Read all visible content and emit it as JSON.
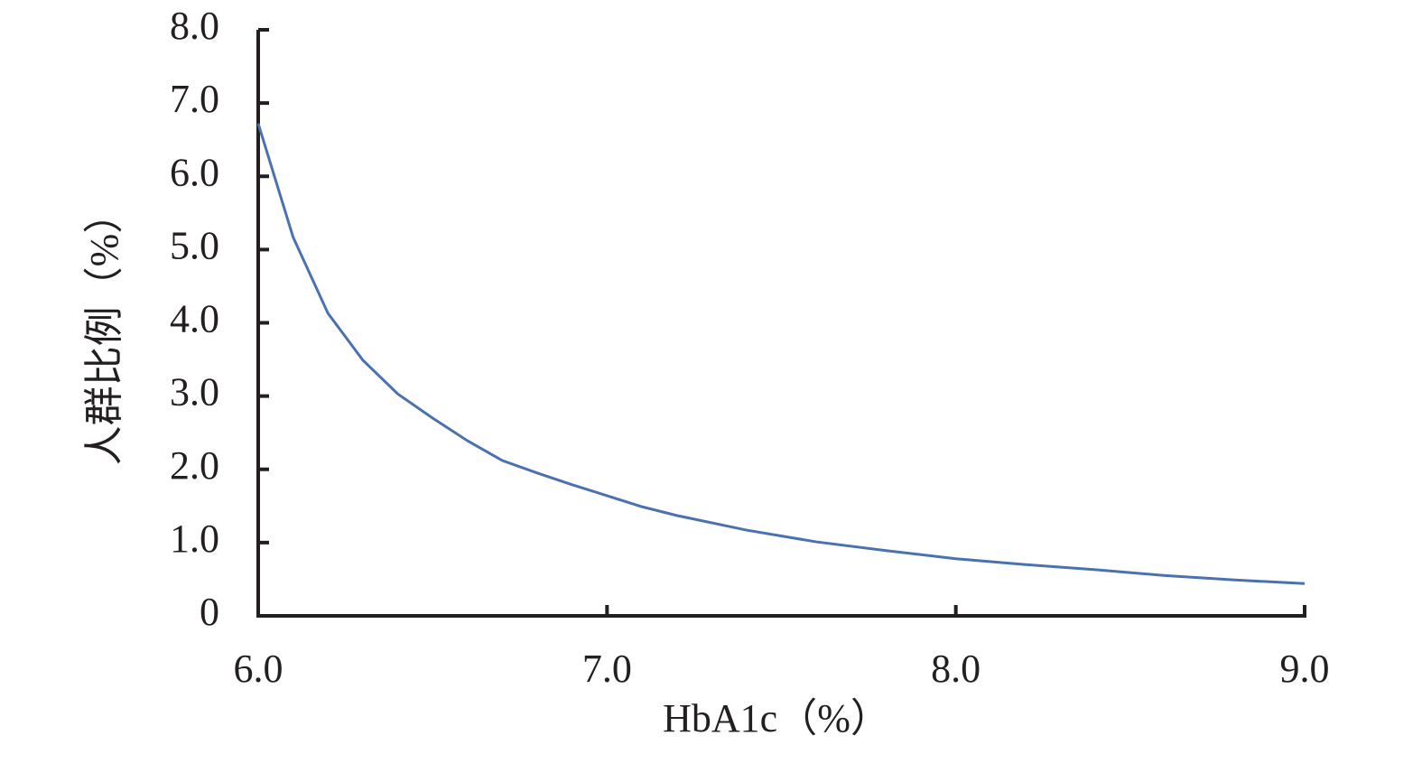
{
  "chart_data": {
    "type": "line",
    "xlabel": "HbA1c（%）",
    "ylabel": "人群比例（%）",
    "series": [
      {
        "color": "#4a72b0",
        "x": [
          6.0,
          6.1,
          6.2,
          6.3,
          6.4,
          6.5,
          6.6,
          6.7,
          6.8,
          6.9,
          7.0,
          7.1,
          7.2,
          7.4,
          7.6,
          7.8,
          8.0,
          8.2,
          8.4,
          8.6,
          8.8,
          9.0
        ],
        "values": [
          6.72,
          5.17,
          4.13,
          3.49,
          3.03,
          2.7,
          2.39,
          2.12,
          1.95,
          1.79,
          1.64,
          1.49,
          1.37,
          1.17,
          1.01,
          0.89,
          0.78,
          0.7,
          0.63,
          0.55,
          0.49,
          0.44
        ]
      }
    ],
    "xlim": [
      6.0,
      9.0
    ],
    "xticks": [
      {
        "value": 6,
        "label": "6.0"
      },
      {
        "value": 7,
        "label": "7.0"
      },
      {
        "value": 8,
        "label": "8.0"
      },
      {
        "value": 9,
        "label": "9.0"
      }
    ],
    "ylim": [
      0,
      8
    ],
    "yticks": [
      0,
      {
        "value": 1,
        "label": "1.0"
      },
      {
        "value": 2,
        "label": "2.0"
      },
      {
        "value": 3,
        "label": "3.0"
      },
      {
        "value": 4,
        "label": "4.0"
      },
      {
        "value": 5,
        "label": "5.0"
      },
      {
        "value": 6,
        "label": "6.0"
      },
      {
        "value": 7,
        "label": "7.0"
      },
      {
        "value": 8,
        "label": "8.0"
      }
    ]
  }
}
